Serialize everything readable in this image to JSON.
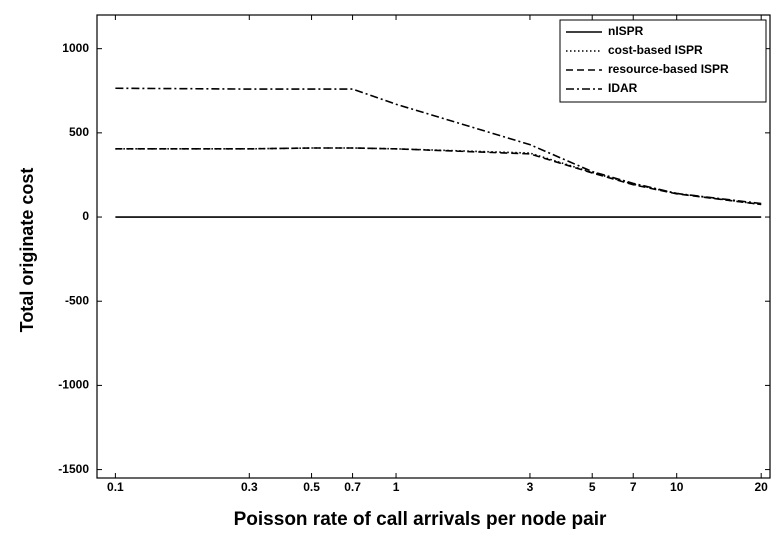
{
  "chart_data": {
    "type": "line",
    "x_label": "Poisson rate of call arrivals per node pair",
    "y_label": "Total originate cost",
    "x": [
      0.1,
      0.3,
      0.5,
      0.7,
      1,
      3,
      5,
      7,
      10,
      20
    ],
    "series": [
      {
        "name": "nISPR",
        "color": "#000000",
        "style": "solid",
        "values": [
          0,
          0,
          0,
          0,
          0,
          0,
          0,
          0,
          0,
          0
        ]
      },
      {
        "name": "cost-based ISPR",
        "color": "#000000",
        "style": "dotted",
        "values": [
          405,
          405,
          410,
          410,
          405,
          380,
          265,
          195,
          140,
          75
        ]
      },
      {
        "name": "resource-based ISPR",
        "color": "#000000",
        "style": "dashed",
        "values": [
          405,
          405,
          410,
          410,
          405,
          375,
          262,
          192,
          138,
          75
        ]
      },
      {
        "name": "IDAR",
        "color": "#000000",
        "style": "dashdot",
        "values": [
          765,
          760,
          760,
          760,
          670,
          430,
          270,
          200,
          140,
          80
        ]
      }
    ],
    "xscale": "log",
    "xlim": [
      0.086,
      21.5
    ],
    "xticks": [
      0.1,
      0.3,
      0.5,
      0.7,
      1,
      3,
      5,
      7,
      10,
      20
    ],
    "ylim": [
      -1550,
      1200
    ],
    "yticks": [
      1000,
      500,
      0,
      -500,
      -1000,
      -1500
    ],
    "legend": "upper right"
  }
}
